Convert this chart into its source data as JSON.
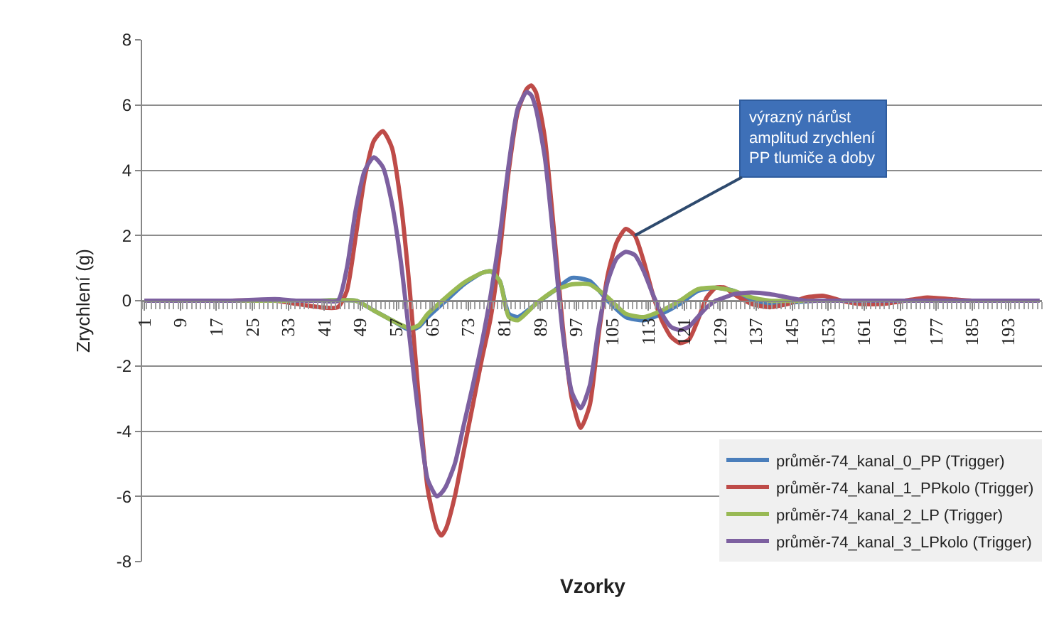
{
  "chart_data": {
    "type": "line",
    "xlabel": "Vzorky",
    "ylabel": "Zrychlení (g)",
    "xlim": [
      0.5,
      200.5
    ],
    "xticks": [
      1,
      9,
      17,
      25,
      33,
      41,
      49,
      57,
      65,
      73,
      81,
      89,
      97,
      105,
      113,
      121,
      129,
      137,
      145,
      153,
      161,
      169,
      177,
      185,
      193
    ],
    "ylim": [
      -8,
      8
    ],
    "yticks": [
      -8,
      -6,
      -4,
      -2,
      0,
      2,
      4,
      6,
      8
    ],
    "grid": "y",
    "legend": "bottom right",
    "marker": "none",
    "line_style": "solid",
    "annotations": [
      {
        "text": "výrazný nárůst\namplitud zrychlení\nPP tlumiče a doby",
        "x": 110,
        "y": 2.0
      }
    ],
    "series": [
      {
        "name": "průměr-74_kanal_0_PP (Trigger)",
        "color": "#4a7ebb",
        "x": [
          1,
          20,
          40,
          48,
          52,
          56,
          60,
          62,
          64,
          68,
          72,
          76,
          78,
          80,
          82,
          84,
          88,
          92,
          96,
          100,
          104,
          108,
          112,
          116,
          120,
          124,
          128,
          132,
          136,
          140,
          150,
          160
        ],
        "values": [
          0,
          0,
          0,
          0,
          -0.3,
          -0.6,
          -0.9,
          -0.8,
          -0.5,
          0,
          0.5,
          0.85,
          0.9,
          0.6,
          -0.4,
          -0.5,
          -0.1,
          0.3,
          0.7,
          0.6,
          0,
          -0.5,
          -0.6,
          -0.4,
          -0.1,
          0.3,
          0.4,
          0.3,
          0,
          -0.1,
          0,
          0
        ]
      },
      {
        "name": "průměr-74_kanal_1_PPkolo (Trigger)",
        "color": "#be4b48",
        "x": [
          20,
          30,
          35,
          40,
          44,
          46,
          48,
          50,
          52,
          54,
          56,
          58,
          60,
          62,
          64,
          66,
          67,
          68,
          70,
          72,
          74,
          76,
          78,
          80,
          82,
          84,
          86,
          87,
          88,
          90,
          92,
          94,
          96,
          98,
          100,
          102,
          104,
          106,
          108,
          110,
          112,
          114,
          116,
          118,
          120,
          122,
          124,
          126,
          128,
          130,
          132,
          136,
          140,
          144,
          148,
          152,
          156,
          160,
          165,
          170,
          175,
          180,
          185,
          190
        ],
        "values": [
          0,
          0,
          -0.1,
          -0.2,
          -0.2,
          0.3,
          2.0,
          3.8,
          4.9,
          5.2,
          4.7,
          3.0,
          0.3,
          -3.0,
          -5.8,
          -7.0,
          -7.2,
          -7.0,
          -6.0,
          -4.6,
          -3.2,
          -1.8,
          -0.5,
          1.5,
          4.0,
          5.8,
          6.5,
          6.6,
          6.4,
          5.0,
          2.2,
          -0.8,
          -3.0,
          -3.9,
          -3.2,
          -1.0,
          0.8,
          1.8,
          2.2,
          2.0,
          1.2,
          0.2,
          -0.6,
          -1.1,
          -1.3,
          -1.2,
          -0.6,
          0.1,
          0.4,
          0.4,
          0.2,
          -0.1,
          -0.2,
          -0.1,
          0.1,
          0.15,
          0,
          -0.1,
          -0.1,
          0,
          0.1,
          0.05,
          0,
          0
        ]
      },
      {
        "name": "průměr-74_kanal_2_LP (Trigger)",
        "color": "#98b954",
        "x": [
          1,
          20,
          40,
          48,
          52,
          56,
          60,
          62,
          64,
          68,
          72,
          76,
          78,
          80,
          82,
          84,
          88,
          92,
          96,
          100,
          104,
          108,
          112,
          116,
          120,
          124,
          128,
          132,
          136,
          140,
          150,
          160
        ],
        "values": [
          0,
          0,
          0,
          0,
          -0.3,
          -0.6,
          -0.85,
          -0.75,
          -0.4,
          0.1,
          0.55,
          0.85,
          0.9,
          0.6,
          -0.5,
          -0.6,
          -0.1,
          0.3,
          0.5,
          0.5,
          0.1,
          -0.4,
          -0.5,
          -0.3,
          0,
          0.35,
          0.4,
          0.3,
          0.1,
          0,
          0,
          0
        ]
      },
      {
        "name": "průměr-74_kanal_3_LPkolo (Trigger)",
        "color": "#7d60a0",
        "x": [
          1,
          10,
          20,
          30,
          35,
          40,
          44,
          46,
          48,
          50,
          52,
          54,
          56,
          58,
          60,
          62,
          64,
          66,
          67,
          68,
          70,
          72,
          74,
          76,
          78,
          80,
          82,
          84,
          86,
          87,
          88,
          90,
          92,
          94,
          96,
          98,
          100,
          102,
          104,
          106,
          108,
          110,
          112,
          114,
          116,
          118,
          120,
          122,
          124,
          126,
          128,
          130,
          132,
          136,
          140,
          144,
          148,
          152,
          156,
          160,
          165,
          170,
          175,
          180,
          185,
          190,
          195,
          200
        ],
        "values": [
          0,
          0,
          0,
          0.05,
          0,
          0,
          0,
          1.0,
          2.8,
          4.0,
          4.4,
          4.1,
          3.0,
          1.2,
          -1.2,
          -3.6,
          -5.5,
          -6.0,
          -5.9,
          -5.7,
          -5.0,
          -3.8,
          -2.6,
          -1.3,
          0.2,
          2.0,
          4.2,
          5.9,
          6.4,
          6.3,
          5.9,
          4.4,
          1.8,
          -1.0,
          -2.8,
          -3.3,
          -2.6,
          -0.8,
          0.6,
          1.3,
          1.5,
          1.4,
          0.9,
          0.2,
          -0.4,
          -0.8,
          -0.9,
          -0.8,
          -0.5,
          -0.2,
          0.0,
          0.1,
          0.2,
          0.25,
          0.2,
          0.1,
          0,
          0,
          0,
          0,
          0,
          0,
          0,
          0,
          0,
          0,
          0,
          0
        ]
      }
    ]
  }
}
